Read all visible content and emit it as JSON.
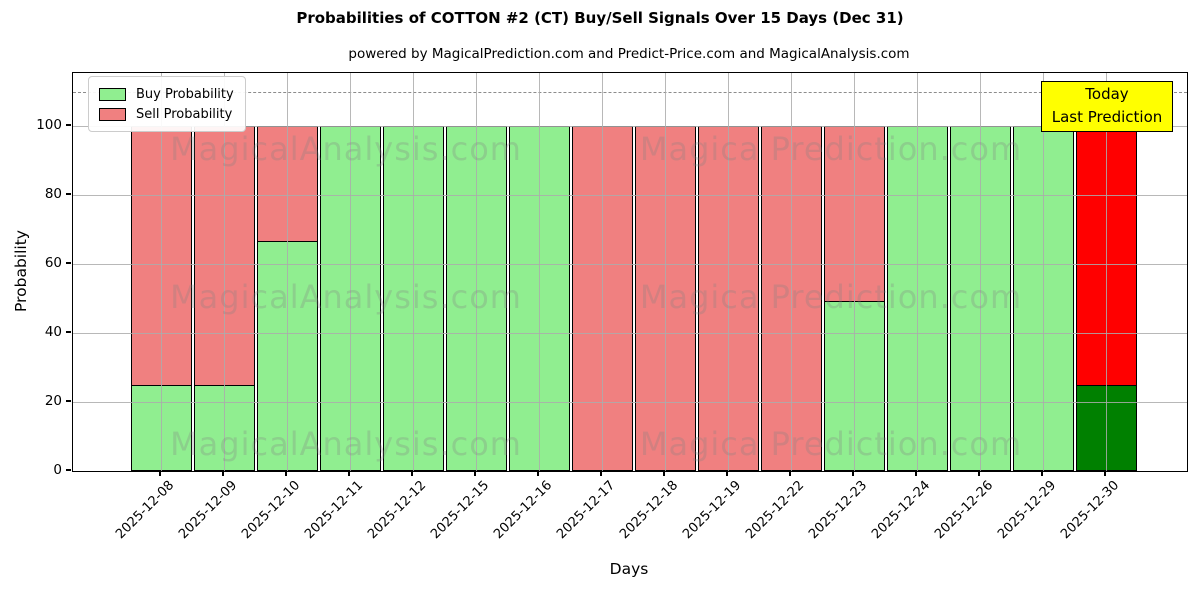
{
  "header": {
    "title": "Probabilities of COTTON #2 (CT) Buy/Sell Signals Over 15 Days (Dec 31)",
    "subtitle": "powered by MagicalPrediction.com and Predict-Price.com and MagicalAnalysis.com"
  },
  "legend": {
    "items": [
      {
        "label": "Buy Probability",
        "color": "#90EE90"
      },
      {
        "label": "Sell Probability",
        "color": "#F08080"
      }
    ]
  },
  "annotation": {
    "line1": "Today",
    "line2": "Last Prediction",
    "bg_color": "#ffff00"
  },
  "watermarks": {
    "left_text": "MagicalAnalysis.com",
    "right_text": "Magica Prediction.com"
  },
  "colors": {
    "buy_normal": "#90EE90",
    "sell_normal": "#F08080",
    "buy_today": "#008000",
    "sell_today": "#FF0000",
    "grid": "#ababab",
    "dashed_line": "#8c8c8c"
  },
  "chart_data": {
    "type": "bar",
    "stacked": true,
    "title": "Probabilities of COTTON #2 (CT) Buy/Sell Signals Over 15 Days (Dec 31)",
    "xlabel": "Days",
    "ylabel": "Probability",
    "yticks": [
      0,
      20,
      40,
      60,
      80,
      100
    ],
    "ylim": [
      0,
      115.4
    ],
    "grid": true,
    "legend_position": "upper left",
    "dashed_reference_line_y": 110,
    "categories": [
      "2025-12-08",
      "2025-12-09",
      "2025-12-10",
      "2025-12-11",
      "2025-12-12",
      "2025-12-15",
      "2025-12-16",
      "2025-12-17",
      "2025-12-18",
      "2025-12-19",
      "2025-12-22",
      "2025-12-23",
      "2025-12-24",
      "2025-12-26",
      "2025-12-29",
      "2025-12-30"
    ],
    "series": [
      {
        "name": "Buy Probability",
        "values": [
          25,
          25,
          66.7,
          100,
          100,
          100,
          100,
          0,
          0,
          0,
          0,
          49.5,
          100,
          100,
          100,
          25
        ]
      },
      {
        "name": "Sell Probability",
        "values": [
          75,
          75,
          33.3,
          0,
          0,
          0,
          0,
          100,
          100,
          100,
          100,
          50.5,
          0,
          0,
          0,
          75
        ]
      }
    ],
    "today_index": 15
  }
}
